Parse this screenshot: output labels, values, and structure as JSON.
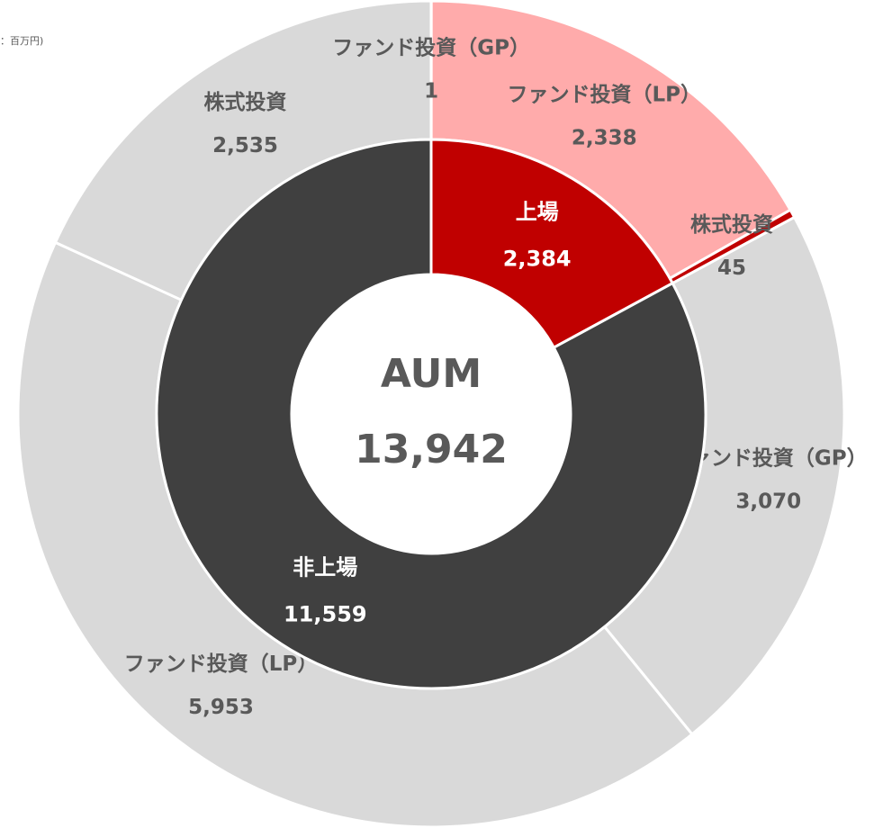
{
  "chart_data": {
    "type": "sunburst",
    "unit_label": "：百万円)",
    "center_label": "AUM",
    "total": 13942,
    "total_label": "13,942",
    "inner": {
      "categories": [
        "上場",
        "非上場"
      ],
      "values": [
        2384,
        11559
      ],
      "value_labels": [
        "2,384",
        "11,559"
      ],
      "colors": [
        "#c00000",
        "#404040"
      ]
    },
    "outer": {
      "categories": [
        "ファンド投資（GP）",
        "ファンド投資（LP）",
        "株式投資",
        "ファンド投資（GP）",
        "ファンド投資（LP）",
        "株式投資"
      ],
      "values": [
        1,
        2338,
        45,
        3070,
        5953,
        2535
      ],
      "value_labels": [
        "1",
        "2,338",
        "45",
        "3,070",
        "5,953",
        "2,535"
      ],
      "colors": [
        "#ffabab",
        "#ffabab",
        "#c00000",
        "#d9d9d9",
        "#d9d9d9",
        "#d9d9d9"
      ]
    }
  }
}
